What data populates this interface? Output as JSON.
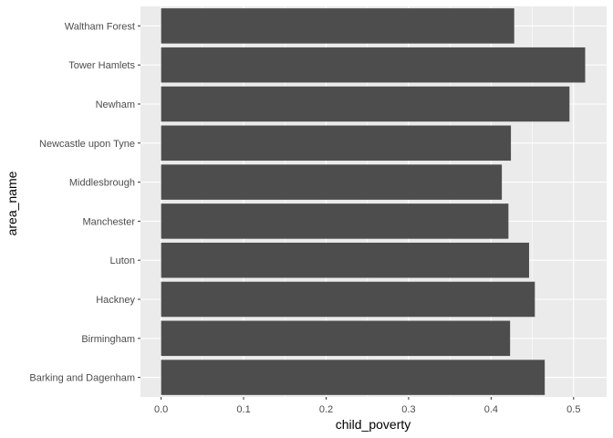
{
  "chart_data": {
    "type": "bar",
    "orientation": "horizontal",
    "xlabel": "child_poverty",
    "ylabel": "area_name",
    "categories": [
      "Barking and Dagenham",
      "Birmingham",
      "Hackney",
      "Luton",
      "Manchester",
      "Middlesbrough",
      "Newcastle upon Tyne",
      "Newham",
      "Tower Hamlets",
      "Waltham Forest"
    ],
    "values": [
      0.465,
      0.423,
      0.453,
      0.446,
      0.421,
      0.413,
      0.424,
      0.495,
      0.514,
      0.428
    ],
    "xlim": [
      -0.025,
      0.54
    ],
    "xticks": [
      0.0,
      0.1,
      0.2,
      0.3,
      0.4,
      0.5
    ],
    "xtick_labels": [
      "0.0",
      "0.1",
      "0.2",
      "0.3",
      "0.4",
      "0.5"
    ],
    "grid": true,
    "colors": {
      "panel": "#ebebeb",
      "grid_major": "#ffffff",
      "bar": "#4d4d4d"
    }
  }
}
